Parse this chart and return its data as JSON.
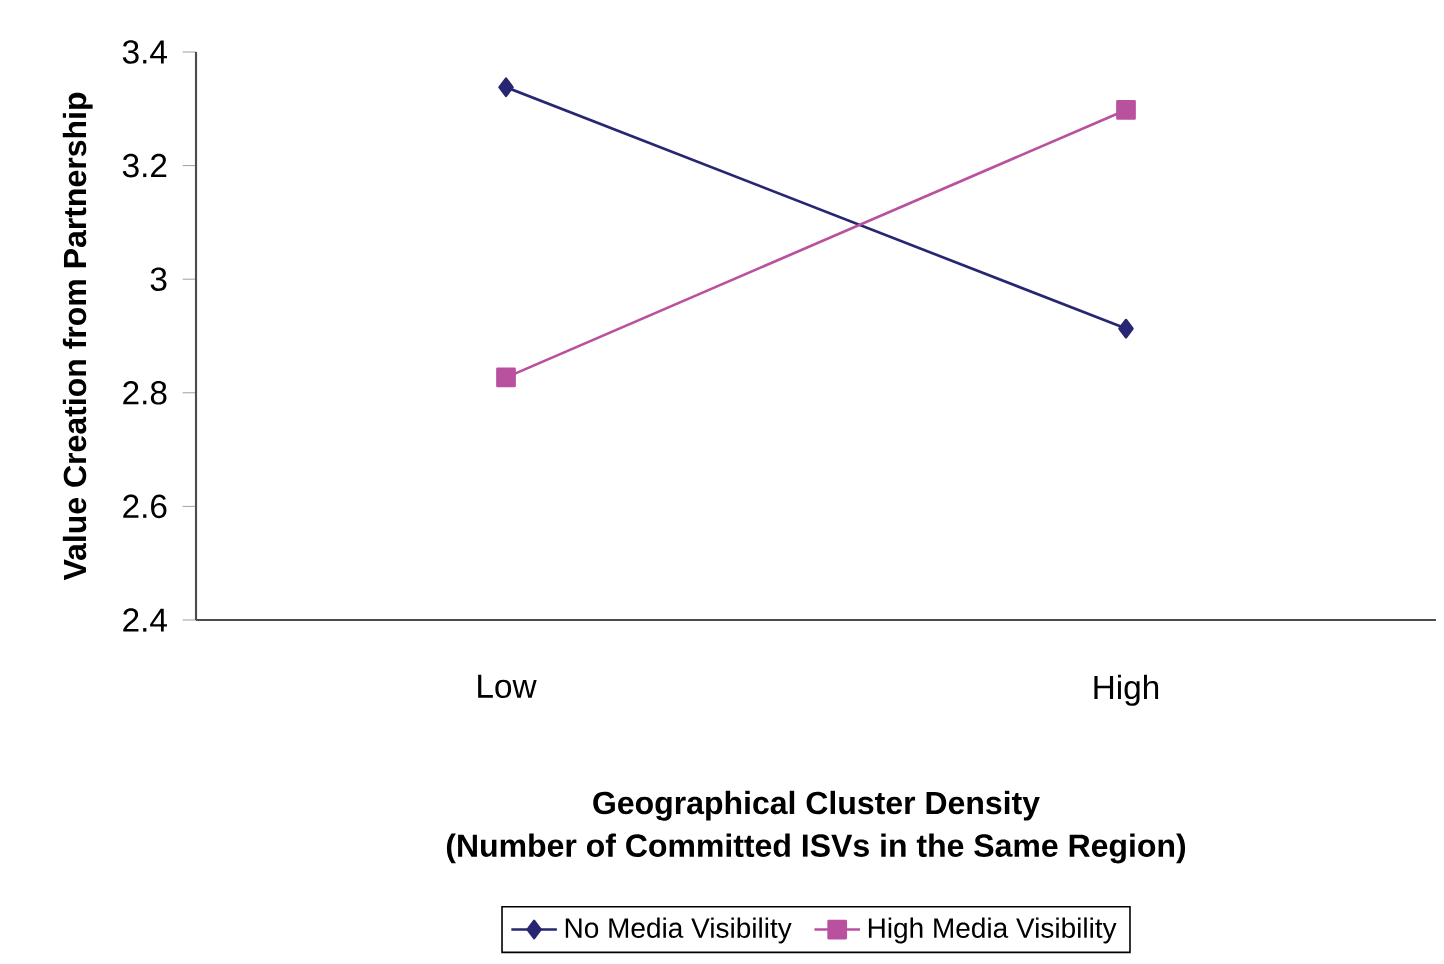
{
  "chart_data": {
    "type": "line",
    "xlabel": "Geographical Cluster Density\n(Number of Committed ISVs in the Same Region)",
    "ylabel": "Value Creation from Partnership",
    "categories": [
      "Low",
      "High"
    ],
    "series": [
      {
        "name": "No Media Visibility",
        "color": "#262673",
        "marker": "diamond",
        "values": [
          3.338,
          2.913
        ]
      },
      {
        "name": "High Media Visibility",
        "color": "#b9519f",
        "marker": "square",
        "values": [
          2.827,
          3.298
        ]
      }
    ],
    "ylim": [
      2.4,
      3.4
    ],
    "yticks": [
      2.4,
      2.6,
      2.8,
      3,
      3.2,
      3.4
    ],
    "grid": false,
    "legend": "bottom",
    "line_style": "solid"
  }
}
